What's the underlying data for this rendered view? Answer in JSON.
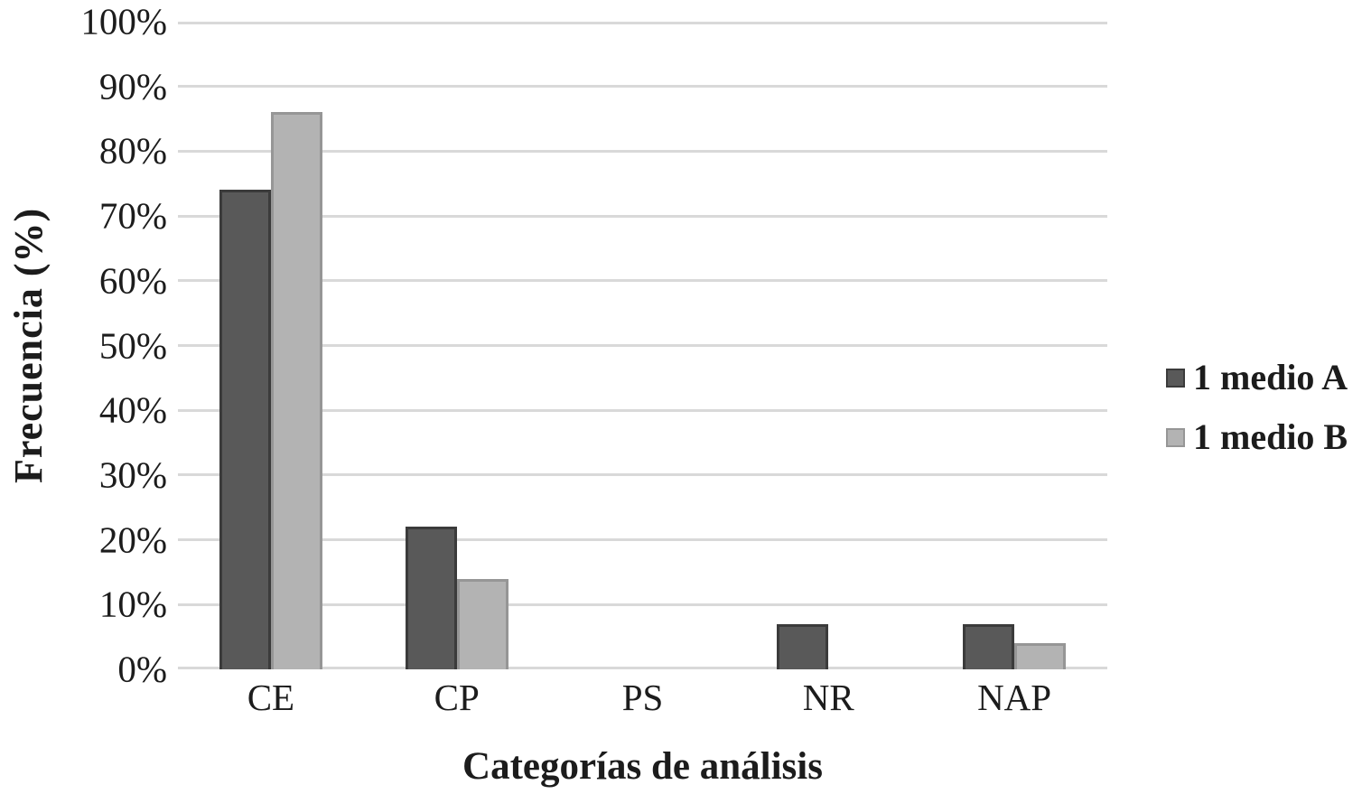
{
  "chart_data": {
    "type": "bar",
    "categories": [
      "CE",
      "CP",
      "PS",
      "NR",
      "NAP"
    ],
    "series": [
      {
        "name": "1 medio A",
        "color": "#595959",
        "border_color": "#3b3b3b",
        "values": [
          74,
          22,
          0,
          7,
          7
        ]
      },
      {
        "name": "1 medio B",
        "color": "#b3b3b3",
        "border_color": "#969696",
        "values": [
          86,
          14,
          0,
          0,
          4
        ]
      }
    ],
    "title": "",
    "xlabel": "Categorías de análisis",
    "ylabel": "Frecuencia (%)",
    "ylim": [
      0,
      100
    ],
    "ytick_step": 10,
    "ytick_labels": [
      "0%",
      "10%",
      "20%",
      "30%",
      "40%",
      "50%",
      "60%",
      "70%",
      "80%",
      "90%",
      "100%"
    ],
    "grid": true,
    "gridline_color": "#d9d9d9",
    "text_color": "#1c1c1c",
    "background_color": "#ffffff",
    "legend_position": "right"
  }
}
